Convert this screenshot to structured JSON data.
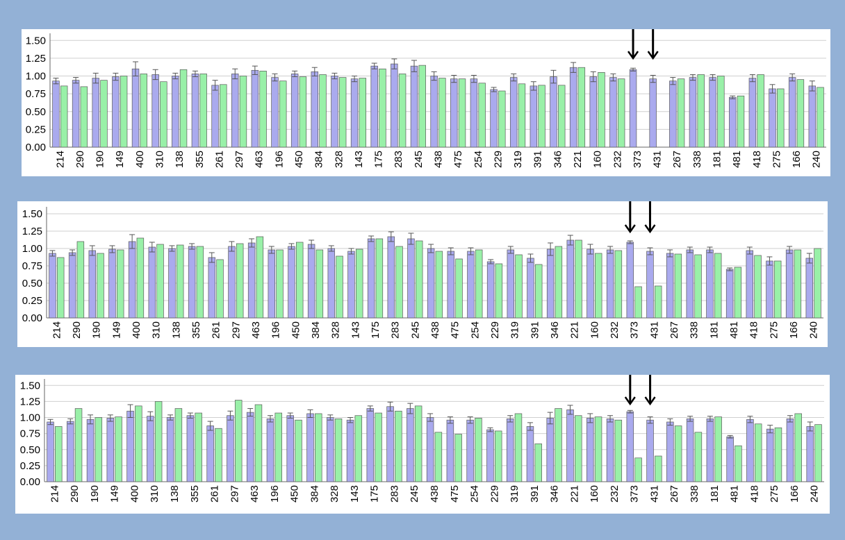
{
  "colors": {
    "series_a": "#aaaaee",
    "series_b": "#99f0a8",
    "grid": "#cfcfcf",
    "border": "#5a5a5a",
    "background": "#93b1d6"
  },
  "chart_data": [
    {
      "type": "bar",
      "categories": [
        "214",
        "290",
        "190",
        "149",
        "400",
        "310",
        "138",
        "355",
        "261",
        "297",
        "463",
        "196",
        "450",
        "384",
        "328",
        "143",
        "175",
        "283",
        "245",
        "438",
        "475",
        "254",
        "229",
        "319",
        "391",
        "346",
        "221",
        "160",
        "232",
        "373",
        "431",
        "267",
        "338",
        "181",
        "481",
        "418",
        "275",
        "166",
        "240"
      ],
      "yticks": [
        "0.00",
        "0.25",
        "0.50",
        "0.75",
        "1.00",
        "1.25",
        "1.50"
      ],
      "ylim": [
        0,
        1.6
      ],
      "grid": true,
      "arrows_at": [
        "373",
        "431"
      ],
      "series": [
        {
          "values": [
            0.93,
            0.94,
            0.97,
            0.99,
            1.1,
            1.02,
            1.0,
            1.03,
            0.87,
            1.03,
            1.08,
            0.98,
            1.03,
            1.06,
            1.0,
            0.96,
            1.14,
            1.17,
            1.14,
            1.0,
            0.96,
            0.96,
            0.81,
            0.98,
            0.86,
            0.99,
            1.12,
            0.99,
            0.98,
            1.09,
            0.96,
            0.93,
            0.98,
            0.98,
            0.7,
            0.97,
            0.82,
            0.98,
            0.86
          ],
          "errors": [
            0.04,
            0.04,
            0.07,
            0.05,
            0.1,
            0.07,
            0.04,
            0.04,
            0.07,
            0.07,
            0.06,
            0.05,
            0.04,
            0.06,
            0.04,
            0.04,
            0.04,
            0.07,
            0.08,
            0.06,
            0.05,
            0.05,
            0.03,
            0.05,
            0.06,
            0.09,
            0.07,
            0.07,
            0.05,
            0.02,
            0.05,
            0.05,
            0.04,
            0.04,
            0.02,
            0.05,
            0.06,
            0.05,
            0.07
          ]
        },
        {
          "values": [
            0.86,
            0.85,
            0.94,
            1.0,
            1.03,
            0.92,
            1.09,
            1.03,
            0.88,
            1.0,
            1.07,
            0.93,
            0.99,
            1.02,
            0.98,
            0.97,
            1.1,
            1.03,
            1.15,
            0.97,
            0.96,
            0.9,
            0.79,
            0.89,
            0.87,
            0.87,
            1.12,
            1.05,
            0.96,
            null,
            null,
            0.96,
            1.02,
            1.0,
            0.72,
            1.02,
            0.82,
            0.95,
            0.84
          ]
        }
      ]
    },
    {
      "type": "bar",
      "categories": [
        "214",
        "290",
        "190",
        "149",
        "400",
        "310",
        "138",
        "355",
        "261",
        "297",
        "463",
        "196",
        "450",
        "384",
        "328",
        "143",
        "175",
        "283",
        "245",
        "438",
        "475",
        "254",
        "229",
        "319",
        "391",
        "346",
        "221",
        "160",
        "232",
        "373",
        "431",
        "267",
        "338",
        "181",
        "481",
        "418",
        "275",
        "166",
        "240"
      ],
      "yticks": [
        "0.00",
        "0.25",
        "0.50",
        "0.75",
        "1.00",
        "1.25",
        "1.50"
      ],
      "ylim": [
        0,
        1.6
      ],
      "grid": true,
      "arrows_at": [
        "373",
        "431"
      ],
      "series": [
        {
          "values": [
            0.93,
            0.94,
            0.97,
            0.99,
            1.1,
            1.02,
            1.0,
            1.03,
            0.87,
            1.03,
            1.08,
            0.98,
            1.03,
            1.06,
            1.0,
            0.96,
            1.14,
            1.17,
            1.14,
            1.0,
            0.96,
            0.96,
            0.81,
            0.98,
            0.86,
            0.99,
            1.12,
            0.99,
            0.98,
            1.09,
            0.96,
            0.93,
            0.98,
            0.98,
            0.7,
            0.97,
            0.82,
            0.98,
            0.86
          ],
          "errors": [
            0.04,
            0.04,
            0.07,
            0.05,
            0.1,
            0.07,
            0.04,
            0.04,
            0.07,
            0.07,
            0.06,
            0.05,
            0.04,
            0.06,
            0.04,
            0.04,
            0.04,
            0.07,
            0.08,
            0.06,
            0.05,
            0.05,
            0.03,
            0.05,
            0.06,
            0.09,
            0.07,
            0.07,
            0.05,
            0.02,
            0.05,
            0.05,
            0.04,
            0.04,
            0.02,
            0.05,
            0.06,
            0.05,
            0.07
          ]
        },
        {
          "values": [
            0.87,
            1.1,
            0.93,
            0.98,
            1.15,
            1.06,
            1.05,
            1.03,
            0.84,
            1.07,
            1.17,
            0.98,
            1.09,
            0.98,
            0.89,
            0.99,
            1.14,
            1.03,
            1.11,
            0.96,
            0.85,
            0.98,
            0.78,
            0.91,
            0.77,
            1.03,
            1.12,
            0.93,
            0.97,
            0.45,
            0.46,
            0.92,
            0.91,
            0.93,
            0.73,
            0.9,
            0.82,
            0.98,
            1.0
          ]
        }
      ]
    },
    {
      "type": "bar",
      "categories": [
        "214",
        "290",
        "190",
        "149",
        "400",
        "310",
        "138",
        "355",
        "261",
        "297",
        "463",
        "196",
        "450",
        "384",
        "328",
        "143",
        "175",
        "283",
        "245",
        "438",
        "475",
        "254",
        "229",
        "319",
        "391",
        "346",
        "221",
        "160",
        "232",
        "373",
        "431",
        "267",
        "338",
        "181",
        "481",
        "418",
        "275",
        "166",
        "240"
      ],
      "yticks": [
        "0.00",
        "0.25",
        "0.50",
        "0.75",
        "1.00",
        "1.25",
        "1.50"
      ],
      "ylim": [
        0,
        1.6
      ],
      "grid": true,
      "arrows_at": [
        "373",
        "431"
      ],
      "series": [
        {
          "values": [
            0.93,
            0.94,
            0.97,
            0.99,
            1.1,
            1.02,
            1.0,
            1.03,
            0.87,
            1.03,
            1.08,
            0.98,
            1.03,
            1.06,
            1.0,
            0.96,
            1.14,
            1.17,
            1.14,
            1.0,
            0.96,
            0.96,
            0.81,
            0.98,
            0.86,
            0.99,
            1.12,
            0.99,
            0.98,
            1.09,
            0.96,
            0.93,
            0.98,
            0.98,
            0.7,
            0.97,
            0.82,
            0.98,
            0.86
          ],
          "errors": [
            0.04,
            0.04,
            0.07,
            0.05,
            0.1,
            0.07,
            0.04,
            0.04,
            0.07,
            0.07,
            0.06,
            0.05,
            0.04,
            0.06,
            0.04,
            0.04,
            0.04,
            0.07,
            0.08,
            0.06,
            0.05,
            0.05,
            0.03,
            0.05,
            0.06,
            0.09,
            0.07,
            0.07,
            0.05,
            0.02,
            0.05,
            0.05,
            0.04,
            0.04,
            0.02,
            0.05,
            0.06,
            0.05,
            0.07
          ]
        },
        {
          "values": [
            0.86,
            1.14,
            1.0,
            1.01,
            1.18,
            1.25,
            1.14,
            1.07,
            0.83,
            1.27,
            1.2,
            1.07,
            0.96,
            1.06,
            0.98,
            1.03,
            1.07,
            1.1,
            1.18,
            0.77,
            0.74,
            0.99,
            0.79,
            1.06,
            0.59,
            1.14,
            1.03,
            1.01,
            0.96,
            0.37,
            0.4,
            0.87,
            0.77,
            1.01,
            0.56,
            0.9,
            0.84,
            1.06,
            0.89
          ]
        }
      ]
    }
  ]
}
